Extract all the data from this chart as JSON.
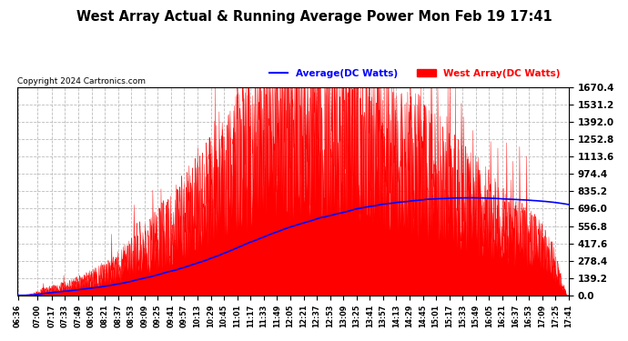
{
  "title": "West Array Actual & Running Average Power Mon Feb 19 17:41",
  "copyright": "Copyright 2024 Cartronics.com",
  "legend_avg": "Average(DC Watts)",
  "legend_west": "West Array(DC Watts)",
  "ymax": 1670.4,
  "ymin": 0.0,
  "yticks": [
    0.0,
    139.2,
    278.4,
    417.6,
    556.8,
    696.0,
    835.2,
    974.4,
    1113.6,
    1252.8,
    1392.0,
    1531.2,
    1670.4
  ],
  "bar_color": "#FF0000",
  "avg_color": "#0000FF",
  "bg_color": "#FFFFFF",
  "grid_color": "#BBBBBB",
  "title_color": "#000000",
  "copyright_color": "#000000",
  "legend_avg_color": "#0000FF",
  "legend_west_color": "#FF0000",
  "x_labels": [
    "06:36",
    "07:00",
    "07:17",
    "07:33",
    "07:49",
    "08:05",
    "08:21",
    "08:37",
    "08:53",
    "09:09",
    "09:25",
    "09:41",
    "09:57",
    "10:13",
    "10:29",
    "10:45",
    "11:01",
    "11:17",
    "11:33",
    "11:49",
    "12:05",
    "12:21",
    "12:37",
    "12:53",
    "13:09",
    "13:25",
    "13:41",
    "13:57",
    "14:13",
    "14:29",
    "14:45",
    "15:01",
    "15:17",
    "15:33",
    "15:49",
    "16:05",
    "16:21",
    "16:37",
    "16:53",
    "17:09",
    "17:25",
    "17:41"
  ],
  "figwidth": 6.9,
  "figheight": 3.75,
  "dpi": 100
}
